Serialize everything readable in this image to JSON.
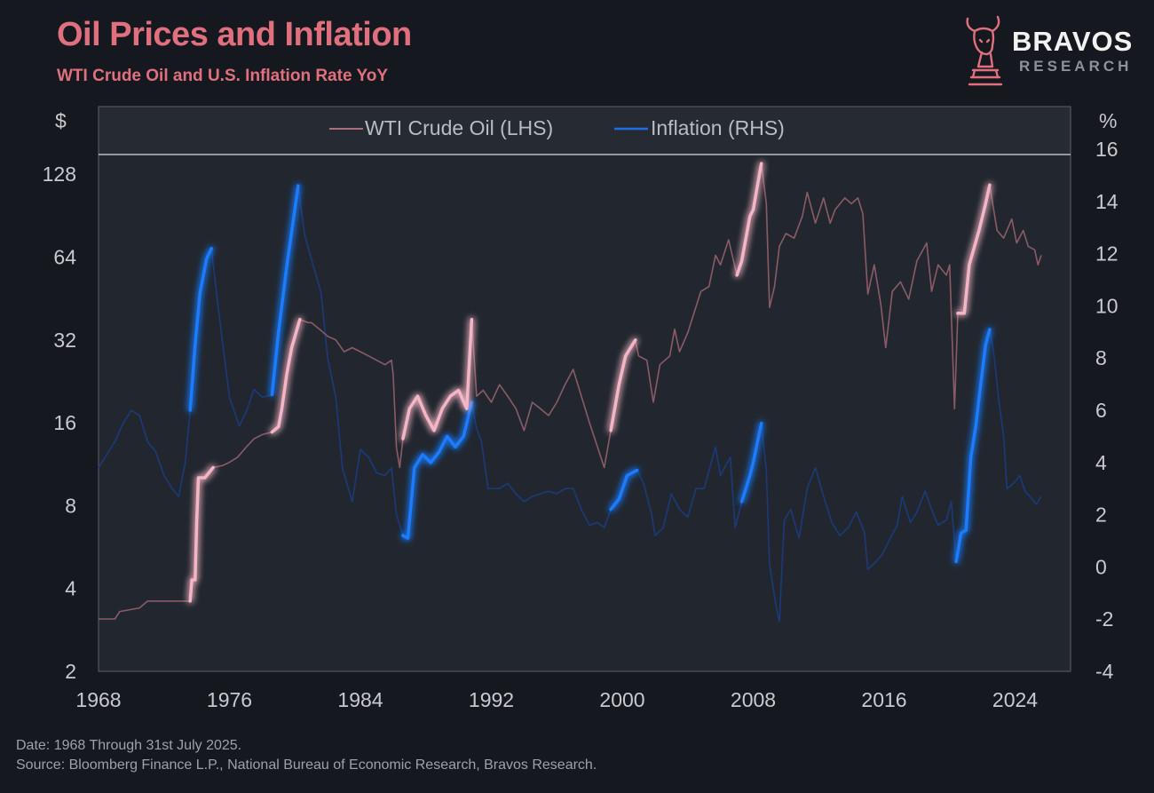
{
  "header": {
    "title": "Oil Prices and Inflation",
    "subtitle": "WTI Crude Oil and U.S. Inflation Rate YoY"
  },
  "logo": {
    "name": "BRAVOS",
    "sub": "RESEARCH",
    "icon": "bull-knight-chess-icon",
    "color": "#e0707e"
  },
  "footer": {
    "date_note": "Date: 1968 Through 31st July 2025.",
    "source_note": "Source: Bloomberg Finance L.P., National Bureau of Economic Research, Bravos Research."
  },
  "colors": {
    "background": "#16181f",
    "plot_background": "#22272f",
    "oil": "#f4b6c6",
    "oil_dim": "#8a5b66",
    "inflation": "#1e7bff",
    "inflation_dim": "#1a3a7a",
    "axis_text": "#c8cad0",
    "title": "#e0707e"
  },
  "chart_data": {
    "type": "line",
    "left_axis_unit": "$",
    "right_axis_unit": "%",
    "left_scale": "log2",
    "left_ylim": [
      2,
      160
    ],
    "left_ticks": [
      2,
      4,
      8,
      16,
      32,
      64,
      128
    ],
    "right_ylim": [
      -4,
      16
    ],
    "right_ticks": [
      -4,
      -2,
      0,
      2,
      4,
      6,
      8,
      10,
      12,
      14,
      16
    ],
    "xlim": [
      1968,
      2025.6
    ],
    "x_ticks": [
      1968,
      1976,
      1984,
      1992,
      2000,
      2008,
      2016,
      2024
    ],
    "legend": {
      "position": "top",
      "entries": [
        "WTI Crude Oil (LHS)",
        "Inflation (RHS)"
      ]
    },
    "grid": false,
    "highlight_periods": [
      [
        1973.6,
        1975.0
      ],
      [
        1978.6,
        1980.5
      ],
      [
        1986.5,
        1990.8
      ],
      [
        1999.0,
        2000.9
      ],
      [
        2007.0,
        2008.6
      ],
      [
        2020.4,
        2022.5
      ]
    ],
    "series": [
      {
        "name": "WTI Crude Oil (LHS)",
        "axis": "left",
        "points": [
          [
            1968.0,
            3.1
          ],
          [
            1969.0,
            3.1
          ],
          [
            1969.3,
            3.3
          ],
          [
            1970.5,
            3.4
          ],
          [
            1971.0,
            3.6
          ],
          [
            1972.0,
            3.6
          ],
          [
            1973.0,
            3.6
          ],
          [
            1973.6,
            3.6
          ],
          [
            1973.7,
            4.3
          ],
          [
            1973.9,
            4.3
          ],
          [
            1974.0,
            7.0
          ],
          [
            1974.1,
            10.1
          ],
          [
            1974.5,
            10.1
          ],
          [
            1975.0,
            11.0
          ],
          [
            1975.6,
            11.2
          ],
          [
            1976.0,
            11.5
          ],
          [
            1976.5,
            12.0
          ],
          [
            1977.0,
            13.0
          ],
          [
            1977.5,
            14.0
          ],
          [
            1978.0,
            14.5
          ],
          [
            1978.6,
            14.8
          ],
          [
            1979.0,
            15.5
          ],
          [
            1979.2,
            18.0
          ],
          [
            1979.5,
            24.0
          ],
          [
            1979.8,
            30.0
          ],
          [
            1980.0,
            33.0
          ],
          [
            1980.3,
            38.0
          ],
          [
            1980.8,
            37.0
          ],
          [
            1981.0,
            37.0
          ],
          [
            1981.5,
            35.0
          ],
          [
            1982.0,
            33.0
          ],
          [
            1982.5,
            32.0
          ],
          [
            1983.0,
            29.0
          ],
          [
            1983.5,
            30.0
          ],
          [
            1984.0,
            29.0
          ],
          [
            1984.5,
            28.0
          ],
          [
            1985.0,
            27.0
          ],
          [
            1985.5,
            26.0
          ],
          [
            1985.9,
            27.0
          ],
          [
            1986.0,
            24.0
          ],
          [
            1986.2,
            13.0
          ],
          [
            1986.4,
            11.0
          ],
          [
            1986.6,
            14.0
          ],
          [
            1987.0,
            18.0
          ],
          [
            1987.5,
            20.0
          ],
          [
            1988.0,
            17.0
          ],
          [
            1988.5,
            15.0
          ],
          [
            1989.0,
            18.0
          ],
          [
            1989.5,
            20.0
          ],
          [
            1990.0,
            21.0
          ],
          [
            1990.5,
            18.0
          ],
          [
            1990.8,
            38.0
          ],
          [
            1991.1,
            20.0
          ],
          [
            1991.5,
            21.0
          ],
          [
            1992.0,
            19.0
          ],
          [
            1992.5,
            22.0
          ],
          [
            1993.0,
            20.0
          ],
          [
            1993.5,
            18.0
          ],
          [
            1994.0,
            15.0
          ],
          [
            1994.5,
            19.0
          ],
          [
            1995.0,
            18.0
          ],
          [
            1995.5,
            17.0
          ],
          [
            1996.0,
            19.0
          ],
          [
            1996.5,
            22.0
          ],
          [
            1997.0,
            25.0
          ],
          [
            1997.5,
            20.0
          ],
          [
            1998.0,
            16.0
          ],
          [
            1998.5,
            13.0
          ],
          [
            1998.9,
            11.0
          ],
          [
            1999.3,
            15.0
          ],
          [
            1999.8,
            22.0
          ],
          [
            2000.2,
            28.0
          ],
          [
            2000.8,
            32.0
          ],
          [
            2001.0,
            28.0
          ],
          [
            2001.5,
            27.0
          ],
          [
            2001.9,
            19.0
          ],
          [
            2002.3,
            26.0
          ],
          [
            2002.9,
            28.0
          ],
          [
            2003.2,
            35.0
          ],
          [
            2003.5,
            29.0
          ],
          [
            2004.0,
            34.0
          ],
          [
            2004.8,
            48.0
          ],
          [
            2005.3,
            50.0
          ],
          [
            2005.7,
            65.0
          ],
          [
            2006.0,
            60.0
          ],
          [
            2006.5,
            74.0
          ],
          [
            2007.0,
            55.0
          ],
          [
            2007.3,
            62.0
          ],
          [
            2007.8,
            90.0
          ],
          [
            2008.0,
            95.0
          ],
          [
            2008.5,
            140.0
          ],
          [
            2008.8,
            100.0
          ],
          [
            2009.0,
            42.0
          ],
          [
            2009.3,
            50.0
          ],
          [
            2009.6,
            70.0
          ],
          [
            2010.0,
            78.0
          ],
          [
            2010.5,
            75.0
          ],
          [
            2011.0,
            90.0
          ],
          [
            2011.3,
            110.0
          ],
          [
            2011.8,
            85.0
          ],
          [
            2012.3,
            105.0
          ],
          [
            2012.7,
            85.0
          ],
          [
            2013.0,
            95.0
          ],
          [
            2013.6,
            105.0
          ],
          [
            2014.0,
            100.0
          ],
          [
            2014.4,
            105.0
          ],
          [
            2014.7,
            92.0
          ],
          [
            2015.0,
            47.0
          ],
          [
            2015.4,
            60.0
          ],
          [
            2015.8,
            43.0
          ],
          [
            2016.1,
            30.0
          ],
          [
            2016.5,
            48.0
          ],
          [
            2017.0,
            52.0
          ],
          [
            2017.5,
            45.0
          ],
          [
            2018.0,
            62.0
          ],
          [
            2018.6,
            72.0
          ],
          [
            2018.9,
            48.0
          ],
          [
            2019.3,
            60.0
          ],
          [
            2019.8,
            55.0
          ],
          [
            2020.0,
            60.0
          ],
          [
            2020.3,
            18.0
          ],
          [
            2020.5,
            40.0
          ],
          [
            2020.9,
            40.0
          ],
          [
            2021.2,
            60.0
          ],
          [
            2021.8,
            80.0
          ],
          [
            2022.2,
            100.0
          ],
          [
            2022.45,
            117.0
          ],
          [
            2022.9,
            80.0
          ],
          [
            2023.3,
            75.0
          ],
          [
            2023.8,
            88.0
          ],
          [
            2024.1,
            72.0
          ],
          [
            2024.5,
            80.0
          ],
          [
            2024.8,
            70.0
          ],
          [
            2025.2,
            68.0
          ],
          [
            2025.4,
            60.0
          ],
          [
            2025.6,
            65.0
          ]
        ]
      },
      {
        "name": "Inflation (RHS)",
        "axis": "right",
        "points": [
          [
            1968.0,
            3.8
          ],
          [
            1968.5,
            4.3
          ],
          [
            1969.0,
            4.8
          ],
          [
            1969.5,
            5.5
          ],
          [
            1970.0,
            6.0
          ],
          [
            1970.5,
            5.8
          ],
          [
            1971.0,
            4.8
          ],
          [
            1971.5,
            4.4
          ],
          [
            1972.0,
            3.5
          ],
          [
            1972.5,
            3.0
          ],
          [
            1972.9,
            2.7
          ],
          [
            1973.3,
            4.0
          ],
          [
            1973.6,
            6.0
          ],
          [
            1973.9,
            8.5
          ],
          [
            1974.2,
            10.5
          ],
          [
            1974.6,
            11.8
          ],
          [
            1974.9,
            12.2
          ],
          [
            1975.3,
            10.0
          ],
          [
            1975.6,
            8.5
          ],
          [
            1976.0,
            6.5
          ],
          [
            1976.6,
            5.4
          ],
          [
            1977.0,
            5.9
          ],
          [
            1977.5,
            6.8
          ],
          [
            1978.0,
            6.5
          ],
          [
            1978.6,
            6.6
          ],
          [
            1979.0,
            9.0
          ],
          [
            1979.5,
            11.5
          ],
          [
            1980.2,
            14.6
          ],
          [
            1980.6,
            12.7
          ],
          [
            1981.0,
            11.8
          ],
          [
            1981.6,
            10.5
          ],
          [
            1982.0,
            8.0
          ],
          [
            1982.5,
            6.5
          ],
          [
            1982.9,
            3.8
          ],
          [
            1983.5,
            2.5
          ],
          [
            1984.0,
            4.5
          ],
          [
            1984.5,
            4.2
          ],
          [
            1985.0,
            3.6
          ],
          [
            1985.5,
            3.5
          ],
          [
            1985.9,
            3.8
          ],
          [
            1986.2,
            2.0
          ],
          [
            1986.6,
            1.2
          ],
          [
            1986.9,
            1.1
          ],
          [
            1987.3,
            3.8
          ],
          [
            1987.8,
            4.3
          ],
          [
            1988.3,
            4.0
          ],
          [
            1988.8,
            4.4
          ],
          [
            1989.3,
            5.0
          ],
          [
            1989.8,
            4.6
          ],
          [
            1990.3,
            5.0
          ],
          [
            1990.8,
            6.3
          ],
          [
            1991.1,
            5.3
          ],
          [
            1991.4,
            4.8
          ],
          [
            1991.8,
            3.0
          ],
          [
            1992.5,
            3.0
          ],
          [
            1993.0,
            3.2
          ],
          [
            1993.5,
            2.8
          ],
          [
            1994.0,
            2.5
          ],
          [
            1994.5,
            2.7
          ],
          [
            1995.0,
            2.8
          ],
          [
            1995.5,
            2.9
          ],
          [
            1996.0,
            2.8
          ],
          [
            1996.5,
            3.0
          ],
          [
            1997.0,
            3.0
          ],
          [
            1997.5,
            2.2
          ],
          [
            1998.0,
            1.6
          ],
          [
            1998.5,
            1.7
          ],
          [
            1998.9,
            1.5
          ],
          [
            1999.3,
            2.2
          ],
          [
            1999.8,
            2.6
          ],
          [
            2000.3,
            3.5
          ],
          [
            2000.9,
            3.7
          ],
          [
            2001.3,
            3.2
          ],
          [
            2001.8,
            2.0
          ],
          [
            2002.0,
            1.2
          ],
          [
            2002.5,
            1.5
          ],
          [
            2003.0,
            2.8
          ],
          [
            2003.5,
            2.2
          ],
          [
            2004.0,
            1.9
          ],
          [
            2004.5,
            3.0
          ],
          [
            2005.0,
            3.0
          ],
          [
            2005.7,
            4.6
          ],
          [
            2006.0,
            3.5
          ],
          [
            2006.6,
            4.2
          ],
          [
            2006.9,
            1.5
          ],
          [
            2007.3,
            2.5
          ],
          [
            2007.8,
            3.5
          ],
          [
            2008.0,
            4.0
          ],
          [
            2008.5,
            5.5
          ],
          [
            2008.8,
            3.7
          ],
          [
            2009.0,
            0.1
          ],
          [
            2009.4,
            -1.5
          ],
          [
            2009.6,
            -2.1
          ],
          [
            2009.9,
            1.8
          ],
          [
            2010.3,
            2.2
          ],
          [
            2010.8,
            1.1
          ],
          [
            2011.3,
            3.0
          ],
          [
            2011.8,
            3.8
          ],
          [
            2012.3,
            2.7
          ],
          [
            2012.8,
            1.7
          ],
          [
            2013.3,
            1.2
          ],
          [
            2013.8,
            1.5
          ],
          [
            2014.3,
            2.1
          ],
          [
            2014.8,
            1.3
          ],
          [
            2015.0,
            -0.1
          ],
          [
            2015.5,
            0.2
          ],
          [
            2015.9,
            0.5
          ],
          [
            2016.3,
            1.0
          ],
          [
            2016.8,
            1.6
          ],
          [
            2017.1,
            2.7
          ],
          [
            2017.6,
            1.7
          ],
          [
            2018.0,
            2.1
          ],
          [
            2018.5,
            2.9
          ],
          [
            2018.9,
            2.2
          ],
          [
            2019.3,
            1.6
          ],
          [
            2019.8,
            1.8
          ],
          [
            2020.1,
            2.5
          ],
          [
            2020.4,
            0.2
          ],
          [
            2020.7,
            1.3
          ],
          [
            2021.0,
            1.4
          ],
          [
            2021.3,
            4.2
          ],
          [
            2021.6,
            5.4
          ],
          [
            2021.9,
            7.0
          ],
          [
            2022.2,
            8.5
          ],
          [
            2022.45,
            9.1
          ],
          [
            2022.7,
            8.2
          ],
          [
            2023.0,
            6.4
          ],
          [
            2023.3,
            5.0
          ],
          [
            2023.5,
            3.0
          ],
          [
            2023.9,
            3.2
          ],
          [
            2024.3,
            3.5
          ],
          [
            2024.6,
            2.9
          ],
          [
            2024.9,
            2.7
          ],
          [
            2025.3,
            2.4
          ],
          [
            2025.6,
            2.7
          ]
        ]
      }
    ]
  }
}
